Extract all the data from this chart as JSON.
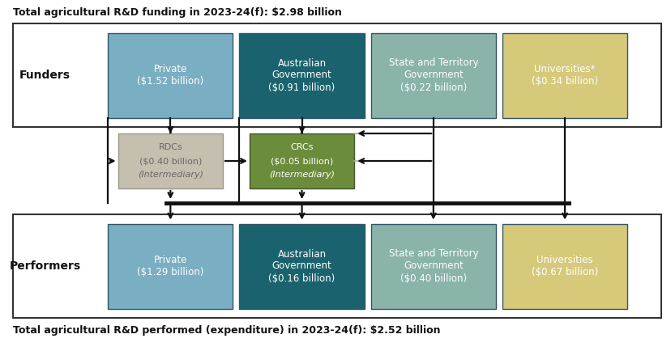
{
  "title_top": "Total agricultural R&D funding in 2023-24(f): $2.98 billion",
  "title_bottom": "Total agricultural R&D performed (expenditure) in 2023-24(f): $2.52 billion",
  "funders_label": "Funders",
  "performers_label": "Performers",
  "funder_boxes": [
    {
      "label": "Private\n($1.52 billion)",
      "color": "#7aaec3",
      "text_color": "#ffffff"
    },
    {
      "label": "Australian\nGovernment\n($0.91 billion)",
      "color": "#1a636e",
      "text_color": "#ffffff"
    },
    {
      "label": "State and Territory\nGovernment\n($0.22 billion)",
      "color": "#8ab3aa",
      "text_color": "#ffffff"
    },
    {
      "label": "Universities*\n($0.34 billion)",
      "color": "#d6c97a",
      "text_color": "#ffffff"
    }
  ],
  "intermediary_boxes": [
    {
      "label": "RDCs\n($0.40 billion)\n(Intermediary)",
      "color": "#c5bfb0",
      "text_color": "#666666",
      "italic_line": 2
    },
    {
      "label": "CRCs\n($0.05 billion)\n(Intermediary)",
      "color": "#6b8c3a",
      "text_color": "#ffffff",
      "italic_line": 2
    }
  ],
  "performer_boxes": [
    {
      "label": "Private\n($1.29 billion)",
      "color": "#7aaec3",
      "text_color": "#ffffff"
    },
    {
      "label": "Australian\nGovernment\n($0.16 billion)",
      "color": "#1a636e",
      "text_color": "#ffffff"
    },
    {
      "label": "State and Territory\nGovernment\n($0.40 billion)",
      "color": "#8ab3aa",
      "text_color": "#ffffff"
    },
    {
      "label": "Universities\n($0.67 billion)",
      "color": "#d6c97a",
      "text_color": "#ffffff"
    }
  ],
  "bg_color": "#ffffff",
  "section_border_color": "#333333",
  "arrow_color": "#111111",
  "hbar_color": "#111111"
}
